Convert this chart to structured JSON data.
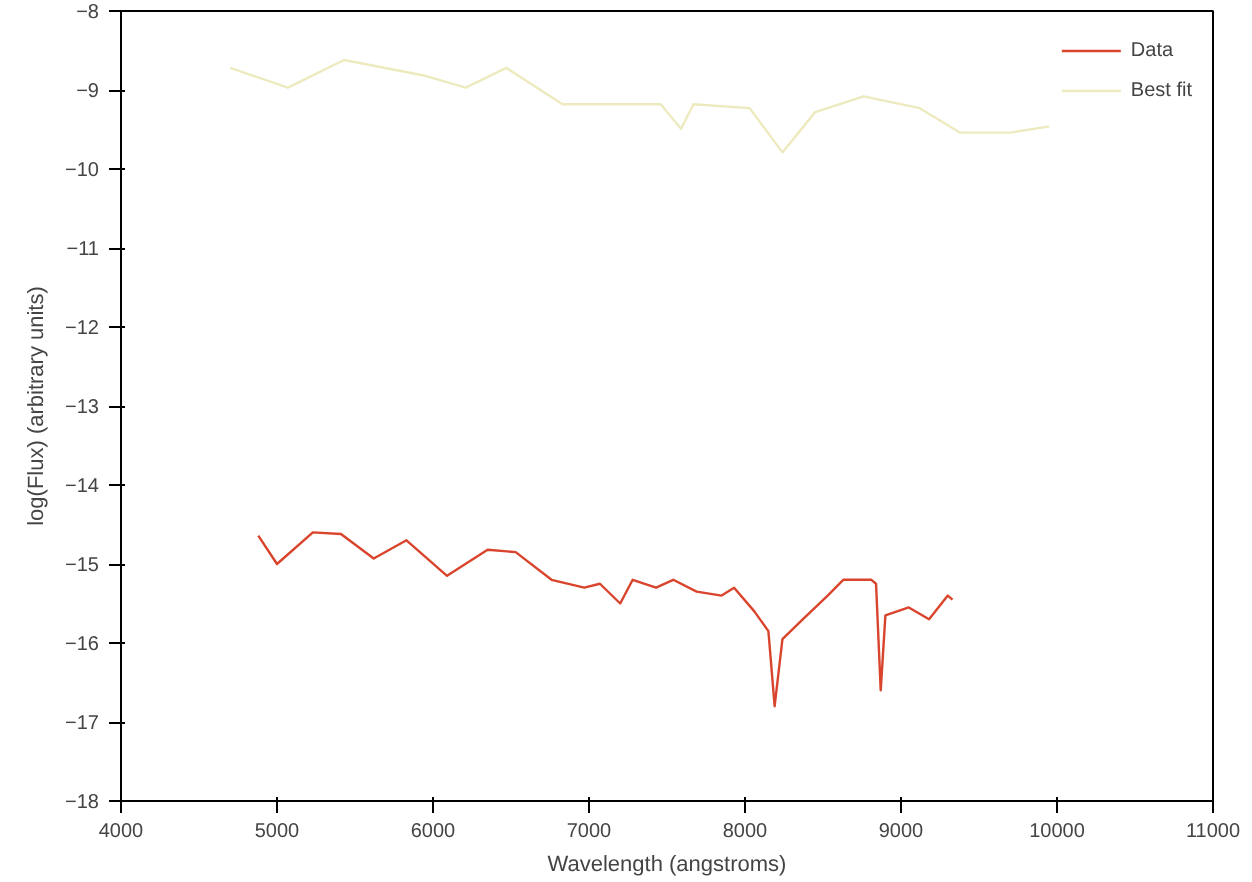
{
  "chart_data": {
    "type": "line",
    "xlabel": "Wavelength (angstroms)",
    "ylabel": "log(Flux) (arbitrary units)",
    "xlim": [
      4000,
      11000
    ],
    "xticks": [
      4000,
      5000,
      6000,
      7000,
      8000,
      9000,
      10000,
      11000
    ],
    "ylim": [
      -18,
      -8
    ],
    "yticks": [
      -8,
      -9,
      -10,
      -11,
      -12,
      -13,
      -14,
      -15,
      -16,
      -17,
      -18
    ],
    "grid": false,
    "legend": "top right",
    "marker": "none",
    "line_style": "solid",
    "series": [
      {
        "name": "Data",
        "color": "#d9442c",
        "x": [
          4880,
          5000,
          5230,
          5410,
          5620,
          5830,
          6090,
          6350,
          6530,
          6760,
          6970,
          7070,
          7200,
          7280,
          7430,
          7540,
          7690,
          7850,
          7930,
          8060,
          8150,
          8190,
          8240,
          8370,
          8530,
          8630,
          8810,
          8840,
          8870,
          8900,
          9050,
          9180,
          9300,
          9330
        ],
        "values": [
          -14.64,
          -15.0,
          -14.6,
          -14.62,
          -14.93,
          -14.7,
          -15.15,
          -14.82,
          -14.85,
          -15.2,
          -15.3,
          -15.25,
          -15.5,
          -15.2,
          -15.3,
          -15.2,
          -15.35,
          -15.4,
          -15.3,
          -15.6,
          -15.85,
          -16.8,
          -15.95,
          -15.7,
          -15.4,
          -15.2,
          -15.2,
          -15.25,
          -16.6,
          -15.65,
          -15.55,
          -15.7,
          -15.4,
          -15.45
        ]
      },
      {
        "name": "Best fit",
        "color": "#eeeabf",
        "x": [
          4700,
          5070,
          5430,
          5950,
          6210,
          6470,
          6830,
          7460,
          7590,
          7670,
          8030,
          8240,
          8450,
          8760,
          9120,
          9380,
          9700,
          9950
        ],
        "values": [
          -8.72,
          -8.97,
          -8.62,
          -8.82,
          -8.97,
          -8.72,
          -9.18,
          -9.18,
          -9.49,
          -9.18,
          -9.23,
          -9.79,
          -9.28,
          -9.08,
          -9.23,
          -9.54,
          -9.54,
          -9.46
        ]
      }
    ]
  }
}
